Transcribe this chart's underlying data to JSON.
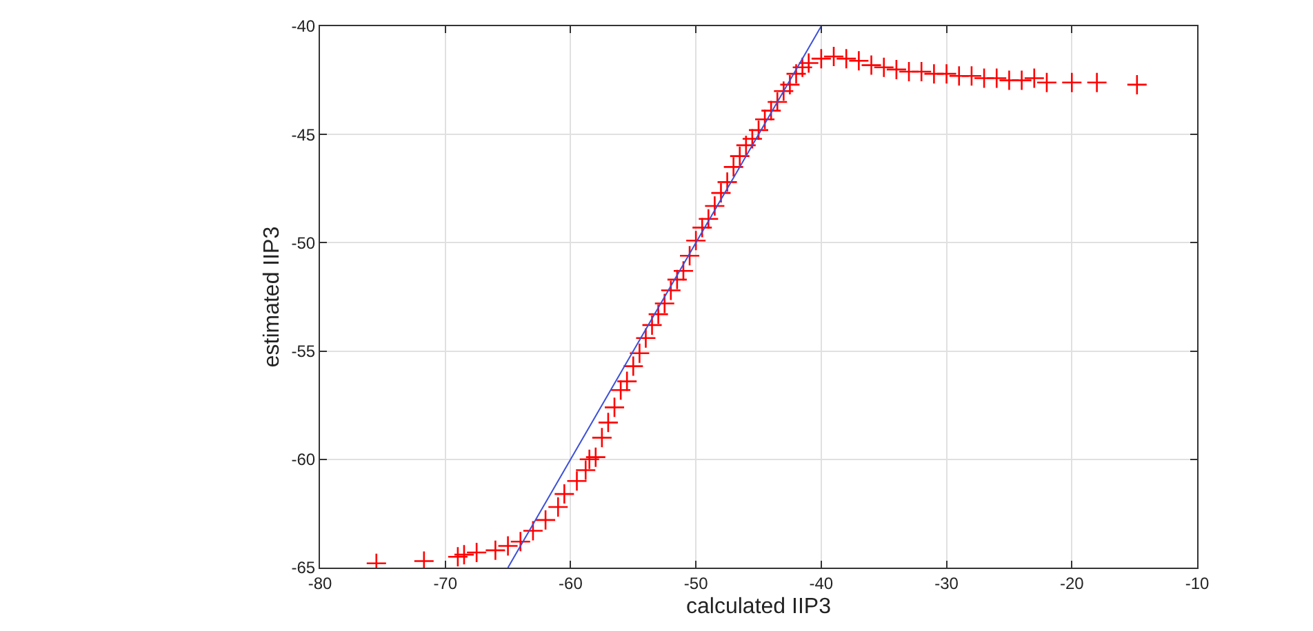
{
  "chart_data": {
    "type": "scatter",
    "xlabel": "calculated IIP3",
    "ylabel": "estimated IIP3",
    "xlim": [
      -80,
      -10
    ],
    "xticks": [
      -80,
      -70,
      -60,
      -50,
      -40,
      -30,
      -20,
      -10
    ],
    "ylim": [
      -65,
      -40
    ],
    "yticks": [
      -65,
      -60,
      -55,
      -50,
      -45,
      -40
    ],
    "grid": true,
    "series": [
      {
        "color": "#ff0000",
        "marker": "cross",
        "x": [
          -75.5,
          -71.7,
          -69,
          -68.5,
          -67.5,
          -66,
          -65,
          -64,
          -63,
          -62,
          -61,
          -60.5,
          -59.5,
          -58.8,
          -58.5,
          -58,
          -57.5,
          -57,
          -56.5,
          -56,
          -55.5,
          -55,
          -54.5,
          -54,
          -53.5,
          -53,
          -52.5,
          -52,
          -51.5,
          -51,
          -50.5,
          -50,
          -49.5,
          -49,
          -48.5,
          -48,
          -47.5,
          -47,
          -46.5,
          -46,
          -45.5,
          -45,
          -44.5,
          -44,
          -43.5,
          -43,
          -42.5,
          -42,
          -41.5,
          -41,
          -40,
          -39,
          -38,
          -37,
          -36,
          -35,
          -34,
          -33,
          -32,
          -31,
          -30,
          -29,
          -28,
          -27,
          -26,
          -25,
          -24,
          -23,
          -22,
          -20,
          -18,
          -14.8
        ],
        "values": [
          -64.8,
          -64.7,
          -64.5,
          -64.4,
          -64.3,
          -64.2,
          -64,
          -63.8,
          -63.3,
          -62.8,
          -62.2,
          -61.6,
          -61,
          -60.5,
          -60,
          -59.9,
          -59,
          -58.3,
          -57.6,
          -56.8,
          -56.4,
          -55.7,
          -55.1,
          -54.4,
          -53.8,
          -53.3,
          -52.8,
          -52.2,
          -51.7,
          -51.3,
          -50.6,
          -49.9,
          -49.3,
          -48.9,
          -48.3,
          -47.7,
          -47.2,
          -46.5,
          -46,
          -45.5,
          -45.2,
          -44.8,
          -44.3,
          -43.9,
          -43.5,
          -43,
          -42.7,
          -42.2,
          -41.9,
          -41.7,
          -41.5,
          -41.4,
          -41.5,
          -41.6,
          -41.8,
          -41.9,
          -42,
          -42.1,
          -42.1,
          -42.2,
          -42.2,
          -42.3,
          -42.3,
          -42.4,
          -42.4,
          -42.5,
          -42.5,
          -42.4,
          -42.6,
          -42.6,
          -42.6,
          -42.7
        ]
      },
      {
        "type": "line",
        "color": "#3b4fd9",
        "line_style": "solid",
        "marker": "none",
        "x": [
          -65,
          -40
        ],
        "values": [
          -65,
          -40
        ]
      }
    ]
  }
}
